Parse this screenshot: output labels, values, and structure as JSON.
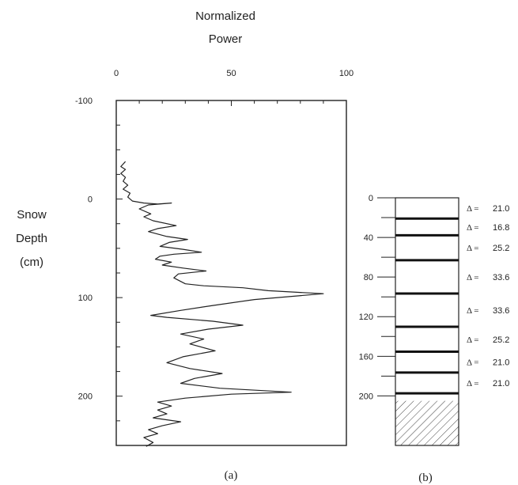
{
  "chart_data": [
    {
      "panel_label": "(a)",
      "type": "line",
      "title": [
        "Normalized",
        "Power"
      ],
      "ylabel": [
        "Snow",
        "Depth",
        "(cm)"
      ],
      "x_range": [
        0,
        100
      ],
      "x_ticks": [
        "0",
        "50",
        "100"
      ],
      "y_range": [
        -100,
        250
      ],
      "y_inverted": true,
      "y_ticks": [
        "-100",
        "0",
        "100",
        "200"
      ],
      "series": [
        {
          "points": [
            [
              4,
              -38
            ],
            [
              2,
              -33
            ],
            [
              4,
              -30
            ],
            [
              2,
              -26
            ],
            [
              4,
              -22
            ],
            [
              3,
              -18
            ],
            [
              5,
              -14
            ],
            [
              3,
              -10
            ],
            [
              6,
              -6
            ],
            [
              5,
              -2
            ],
            [
              7,
              2
            ],
            [
              12,
              4
            ],
            [
              18,
              5
            ],
            [
              24,
              4
            ],
            [
              14,
              6
            ],
            [
              10,
              10
            ],
            [
              15,
              15
            ],
            [
              12,
              18
            ],
            [
              16,
              22
            ],
            [
              26,
              27
            ],
            [
              18,
              30
            ],
            [
              14,
              33
            ],
            [
              22,
              38
            ],
            [
              31,
              41
            ],
            [
              23,
              44
            ],
            [
              19,
              48
            ],
            [
              29,
              51
            ],
            [
              37,
              54
            ],
            [
              25,
              56
            ],
            [
              19,
              58
            ],
            [
              17,
              61
            ],
            [
              24,
              64
            ],
            [
              20,
              67
            ],
            [
              29,
              70
            ],
            [
              39,
              73
            ],
            [
              27,
              76
            ],
            [
              25,
              80
            ],
            [
              30,
              86
            ],
            [
              38,
              88
            ],
            [
              55,
              90
            ],
            [
              66,
              93
            ],
            [
              90,
              96
            ],
            [
              60,
              102
            ],
            [
              42,
              108
            ],
            [
              28,
              113
            ],
            [
              15,
              118
            ],
            [
              22,
              120
            ],
            [
              42,
              124
            ],
            [
              55,
              128
            ],
            [
              40,
              132
            ],
            [
              28,
              137
            ],
            [
              38,
              142
            ],
            [
              32,
              147
            ],
            [
              43,
              154
            ],
            [
              29,
              160
            ],
            [
              22,
              166
            ],
            [
              32,
              172
            ],
            [
              46,
              177
            ],
            [
              34,
              182
            ],
            [
              28,
              187
            ],
            [
              45,
              192
            ],
            [
              76,
              196
            ],
            [
              50,
              198
            ],
            [
              30,
              202
            ],
            [
              18,
              206
            ],
            [
              24,
              210
            ],
            [
              18,
              214
            ],
            [
              22,
              218
            ],
            [
              16,
              222
            ],
            [
              28,
              226
            ],
            [
              20,
              230
            ],
            [
              14,
              234
            ],
            [
              18,
              238
            ],
            [
              12,
              242
            ],
            [
              16,
              247
            ],
            [
              13,
              251
            ]
          ]
        }
      ]
    },
    {
      "panel_label": "(b)",
      "type": "layer_column",
      "y_range": [
        0,
        250
      ],
      "y_ticks": [
        "0",
        "40",
        "80",
        "120",
        "160",
        "200"
      ],
      "layer_boundaries": [
        21,
        37.8,
        63,
        96.6,
        130.2,
        155.4,
        176.4,
        197.4
      ],
      "hatched_from": 205,
      "deltas": [
        {
          "symbol": "Δ =",
          "value": "21.0"
        },
        {
          "symbol": "Δ =",
          "value": "16.8"
        },
        {
          "symbol": "Δ =",
          "value": "25.2"
        },
        {
          "symbol": "Δ =",
          "value": "33.6"
        },
        {
          "symbol": "Δ =",
          "value": "33.6"
        },
        {
          "symbol": "Δ =",
          "value": "25.2"
        },
        {
          "symbol": "Δ =",
          "value": "21.0"
        },
        {
          "symbol": "Δ =",
          "value": "21.0"
        }
      ]
    }
  ]
}
